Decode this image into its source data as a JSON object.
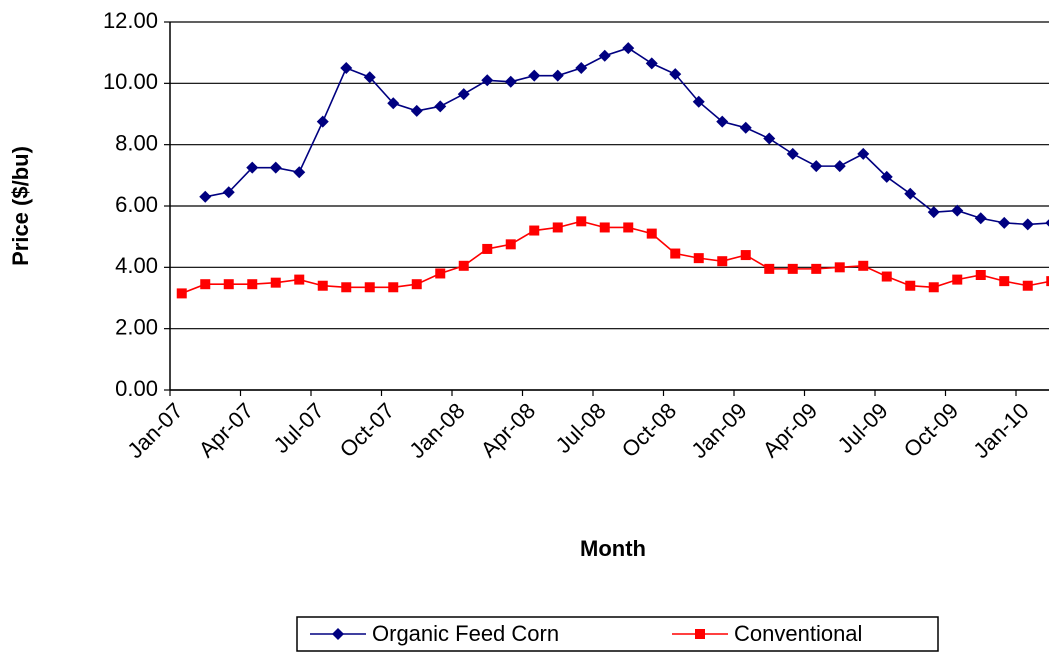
{
  "chart_data": {
    "type": "line",
    "x_label": "Month",
    "y_label": "Price ($/bu)",
    "categories": [
      "Jan-07",
      null,
      null,
      "Apr-07",
      null,
      null,
      "Jul-07",
      null,
      null,
      "Oct-07",
      null,
      null,
      "Jan-08",
      null,
      null,
      "Apr-08",
      null,
      null,
      "Jul-08",
      null,
      null,
      "Oct-08",
      null,
      null,
      "Jan-09",
      null,
      null,
      "Apr-09",
      null,
      null,
      "Jul-09",
      null,
      null,
      "Oct-09",
      null,
      null,
      "Jan-10",
      null
    ],
    "series": [
      {
        "name": "Organic Feed Corn",
        "color": "#000080",
        "marker": "diamond",
        "values": [
          null,
          6.3,
          6.45,
          7.25,
          7.25,
          7.1,
          8.75,
          10.5,
          10.2,
          9.35,
          9.1,
          9.25,
          9.65,
          10.1,
          10.05,
          10.25,
          10.25,
          10.5,
          10.9,
          11.15,
          10.65,
          10.3,
          9.4,
          8.75,
          8.55,
          8.2,
          7.7,
          7.3,
          7.3,
          7.7,
          6.95,
          6.4,
          5.8,
          5.85,
          5.6,
          5.45,
          5.4,
          5.45
        ]
      },
      {
        "name": "Conventional",
        "color": "#ff0000",
        "marker": "square",
        "values": [
          3.15,
          3.45,
          3.45,
          3.45,
          3.5,
          3.6,
          3.4,
          3.35,
          3.35,
          3.35,
          3.45,
          3.8,
          4.05,
          4.6,
          4.75,
          5.2,
          5.3,
          5.5,
          5.3,
          5.3,
          5.1,
          4.45,
          4.3,
          4.2,
          4.4,
          3.95,
          3.95,
          3.95,
          4.0,
          4.05,
          3.7,
          3.4,
          3.35,
          3.6,
          3.75,
          3.55,
          3.4,
          3.55
        ]
      }
    ],
    "ylim": [
      0,
      12
    ],
    "yticks": [
      {
        "value": 0,
        "label": "0.00"
      },
      {
        "value": 2,
        "label": "2.00"
      },
      {
        "value": 4,
        "label": "4.00"
      },
      {
        "value": 6,
        "label": "6.00"
      },
      {
        "value": 8,
        "label": "8.00"
      },
      {
        "value": 10,
        "label": "10.00"
      },
      {
        "value": 12,
        "label": "12.00"
      }
    ],
    "grid": true,
    "legend": "bottom"
  }
}
